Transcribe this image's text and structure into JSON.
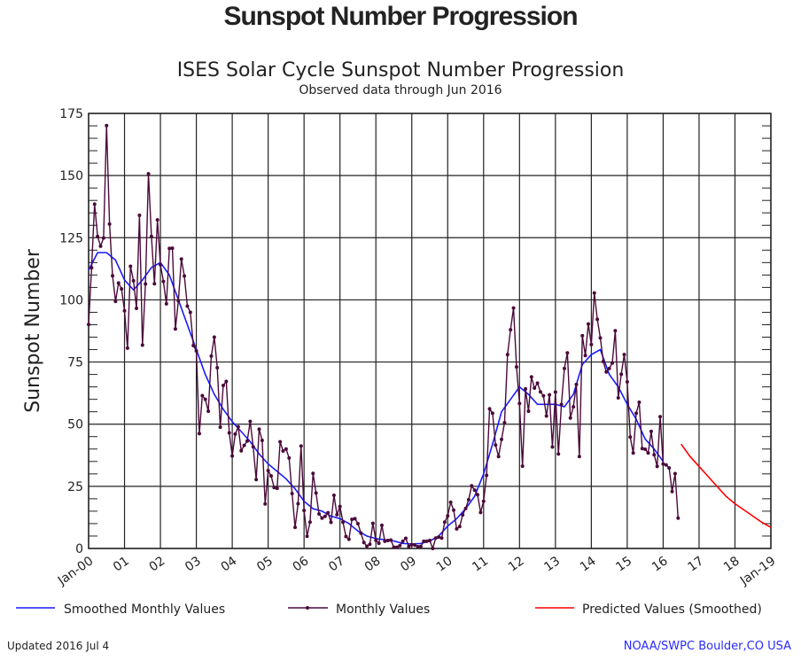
{
  "page_title": "Sunspot Number Progression",
  "chart_data": {
    "type": "line",
    "title": "ISES Solar Cycle Sunspot Number Progression",
    "subtitle": "Observed data through Jun 2016",
    "ylabel": "Sunspot Number",
    "xlabel": "",
    "ylim": [
      0,
      175
    ],
    "xlim": [
      2000,
      2019
    ],
    "yticks": [
      0,
      25,
      50,
      75,
      100,
      125,
      150,
      175
    ],
    "xtick_labels": [
      "Jan-00",
      "01",
      "02",
      "03",
      "04",
      "05",
      "06",
      "07",
      "08",
      "09",
      "10",
      "11",
      "12",
      "13",
      "14",
      "15",
      "16",
      "17",
      "18",
      "Jan-19"
    ],
    "grid": true,
    "legend_position": "bottom",
    "series": [
      {
        "name": "Smoothed Monthly Values",
        "color": "#1a1aff",
        "style": "line",
        "x": [
          2000,
          2000.25,
          2000.5,
          2000.75,
          2001,
          2001.25,
          2001.5,
          2001.75,
          2002,
          2002.25,
          2002.5,
          2002.75,
          2003,
          2003.25,
          2003.5,
          2003.75,
          2004,
          2004.25,
          2004.5,
          2004.75,
          2005,
          2005.25,
          2005.5,
          2005.75,
          2006,
          2006.25,
          2006.5,
          2006.75,
          2007,
          2007.25,
          2007.5,
          2007.75,
          2008,
          2008.25,
          2008.5,
          2008.75,
          2009,
          2009.25,
          2009.5,
          2009.75,
          2010,
          2010.25,
          2010.5,
          2010.75,
          2011,
          2011.25,
          2011.5,
          2011.75,
          2012,
          2012.25,
          2012.5,
          2012.75,
          2013,
          2013.25,
          2013.5,
          2013.75,
          2014,
          2014.25,
          2014.5,
          2014.75,
          2015,
          2015.25,
          2015.5,
          2015.75,
          2016
        ],
        "y": [
          112,
          119,
          119,
          116,
          108,
          104,
          108,
          113,
          115,
          110,
          100,
          90,
          80,
          70,
          62,
          56,
          51,
          47,
          43,
          38,
          34,
          31,
          28,
          24,
          19,
          16,
          15,
          13,
          12,
          10,
          7,
          5,
          4,
          3.5,
          3,
          2,
          1.8,
          2,
          3,
          5,
          9,
          12,
          16,
          21,
          30,
          42,
          55,
          60,
          65,
          62,
          58,
          58,
          58,
          57,
          62,
          74,
          78,
          80,
          70,
          65,
          58,
          52,
          44,
          40,
          35
        ]
      },
      {
        "name": "Monthly Values",
        "color": "#4a0a3a",
        "style": "line-marker",
        "start": 2000,
        "step_months": 1,
        "y": [
          90.1,
          112.9,
          138.5,
          125.5,
          121.6,
          124.9,
          170.1,
          130.5,
          109.7,
          99.4,
          106.8,
          104.4,
          95.6,
          80.6,
          113.5,
          107.7,
          96.6,
          134.0,
          81.8,
          106.4,
          150.7,
          125.5,
          106.5,
          132.2,
          114.1,
          107.4,
          98.4,
          120.7,
          120.8,
          88.3,
          99.6,
          116.4,
          109.6,
          97.5,
          95.0,
          81.6,
          79.5,
          46.2,
          61.5,
          60.0,
          55.2,
          77.4,
          85.0,
          72.7,
          48.8,
          65.6,
          67.2,
          46.5,
          37.2,
          46.0,
          48.9,
          39.3,
          41.5,
          43.2,
          51.1,
          40.9,
          27.7,
          48.0,
          43.5,
          17.9,
          31.3,
          29.2,
          24.5,
          24.2,
          42.9,
          39.2,
          40.0,
          36.4,
          22.1,
          8.5,
          18.0,
          41.2,
          15.3,
          4.9,
          10.6,
          30.2,
          22.3,
          13.9,
          12.2,
          12.9,
          14.4,
          10.5,
          21.4,
          13.6,
          16.9,
          10.6,
          4.8,
          3.7,
          11.7,
          12.0,
          10.0,
          6.2,
          2.4,
          0.9,
          1.7,
          10.1,
          3.3,
          2.1,
          9.3,
          2.9,
          3.2,
          3.4,
          0.5,
          0.5,
          1.1,
          2.9,
          4.1,
          0.8,
          1.5,
          1.4,
          0.7,
          0.8,
          2.9,
          2.9,
          3.2,
          0.0,
          4.2,
          4.6,
          4.2,
          10.6,
          13.1,
          18.6,
          15.4,
          7.9,
          8.8,
          13.5,
          16.1,
          19.6,
          25.2,
          23.5,
          21.6,
          14.5,
          19.0,
          29.4,
          56.2,
          54.4,
          41.6,
          37.0,
          43.9,
          50.6,
          78.0,
          88.0,
          96.7,
          73.0,
          58.3,
          33.1,
          64.2,
          55.2,
          69.0,
          64.5,
          66.5,
          63.0,
          61.4,
          53.3,
          61.8,
          40.8,
          62.9,
          38.0,
          57.9,
          72.4,
          78.7,
          52.5,
          57.0,
          66.0,
          37.0,
          85.6,
          77.6,
          90.3,
          82.0,
          102.8,
          92.2,
          84.7,
          75.2,
          71.0,
          72.4,
          74.6,
          87.6,
          60.6,
          70.1,
          78.0,
          67.0,
          44.8,
          38.4,
          54.4,
          58.8,
          40.2,
          39.9,
          38.4,
          47.1,
          37.7,
          33.0,
          53.0,
          34.0,
          33.6,
          32.4,
          22.9,
          30.1,
          12.2
        ]
      },
      {
        "name": "Predicted Values (Smoothed)",
        "color": "#ff0000",
        "style": "line",
        "x": [
          2016.5,
          2016.75,
          2017,
          2017.25,
          2017.5,
          2017.75,
          2018,
          2018.25,
          2018.5,
          2018.75,
          2019
        ],
        "y": [
          42,
          37,
          33,
          29,
          25,
          21,
          18,
          15.5,
          13,
          10.5,
          8.5
        ]
      }
    ]
  },
  "footer": {
    "updated": "Updated 2016 Jul  4",
    "credit": "NOAA/SWPC Boulder,CO USA"
  }
}
